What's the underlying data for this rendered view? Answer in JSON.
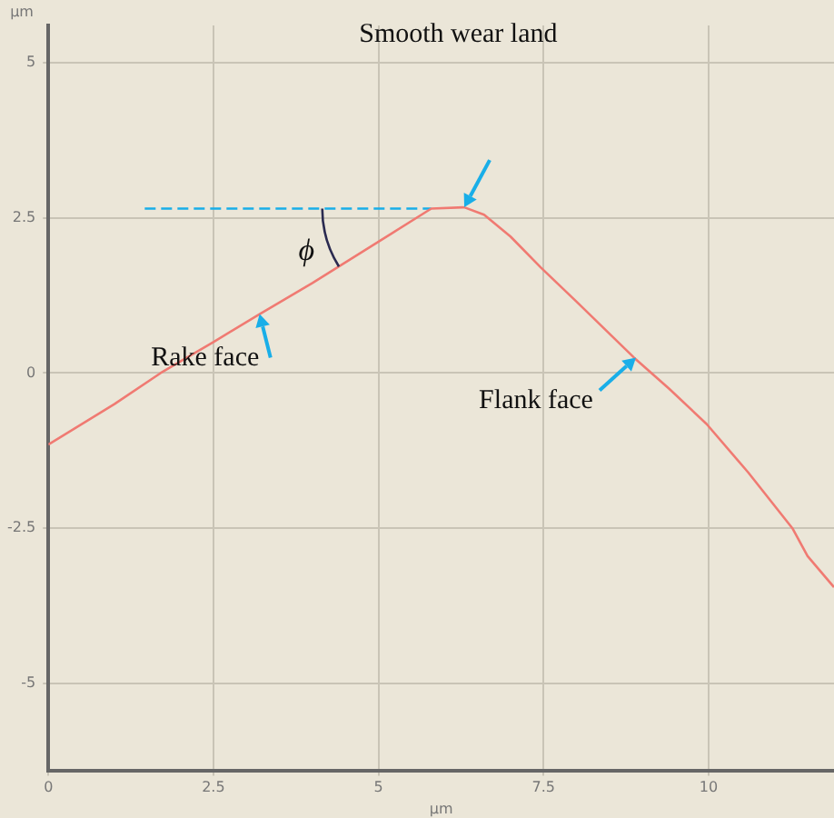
{
  "chart_data": {
    "type": "line",
    "xlabel": "μm",
    "ylabel": "μm",
    "xlim": [
      0,
      11.9
    ],
    "ylim": [
      -6.4,
      5.6
    ],
    "xticks": [
      0,
      2.5,
      5,
      7.5,
      10
    ],
    "yticks": [
      -5,
      -2.5,
      0,
      2.5,
      5
    ],
    "grid": true,
    "legend": false,
    "marker": "none",
    "series": [
      {
        "color": "#f07a72",
        "x": [
          0,
          1,
          1.7,
          2.5,
          3.2,
          4,
          4.6,
          5.2,
          5.8,
          6.3,
          6.6,
          7,
          7.46,
          8,
          8.87,
          9.4,
          9.97,
          10.6,
          11.27,
          11.5,
          11.9
        ],
        "values": [
          -1.15,
          -0.5,
          0,
          0.5,
          0.95,
          1.45,
          1.85,
          2.25,
          2.65,
          2.67,
          2.55,
          2.2,
          1.7,
          1.15,
          0.25,
          -0.25,
          -0.82,
          -1.6,
          -2.5,
          -2.95,
          -3.45
        ]
      },
      {
        "color": "#19aee8",
        "line_style": "dashed",
        "x": [
          1.46,
          5.8
        ],
        "values": [
          2.65,
          2.65
        ]
      }
    ],
    "annotations": [
      "Smooth wear land",
      "ϕ",
      {
        "text": "Rake face",
        "x": 3.2,
        "y": 0.95
      },
      {
        "text": "Flank face",
        "x": 8.9,
        "y": 0.25
      }
    ]
  }
}
